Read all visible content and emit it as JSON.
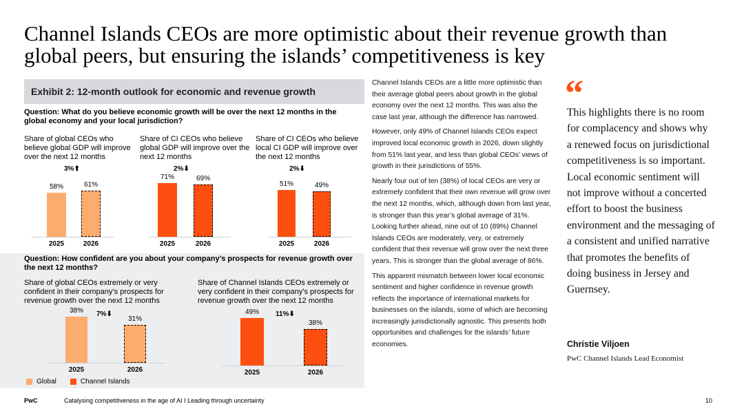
{
  "title": {
    "line1": "Channel Islands CEOs are more optimistic about their revenue growth than",
    "line2": "global peers, but ensuring the islands’ competitiveness is key"
  },
  "exhibit": {
    "title": "Exhibit 2: 12-month outlook for economic and revenue growth"
  },
  "questions": {
    "q1": "Question: What do you believe economic growth will be over the next 12 months in the global economy and your local jurisdiction?",
    "q2": "Question: How confident are you about your company’s prospects for revenue growth over the next 12 months?"
  },
  "colors": {
    "global": "#fdac6f",
    "channel_islands": "#fd5010",
    "accent": "#fd5010"
  },
  "chart_data": [
    {
      "type": "bar",
      "title": "Share of global CEOs who believe global GDP will improve over the next 12 months",
      "categories": [
        "2025",
        "2026"
      ],
      "values": [
        58,
        61
      ],
      "labels": [
        "58%",
        "61%"
      ],
      "series_type": "global",
      "change": "3%",
      "change_direction": "up",
      "ylim": [
        0,
        75
      ]
    },
    {
      "type": "bar",
      "title": "Share of CI CEOs who believe global GDP will improve over the next 12 months",
      "categories": [
        "2025",
        "2026"
      ],
      "values": [
        71,
        69
      ],
      "labels": [
        "71%",
        "69%"
      ],
      "series_type": "ci",
      "change": "2%",
      "change_direction": "down",
      "ylim": [
        0,
        75
      ]
    },
    {
      "type": "bar",
      "title": "Share of CI CEOs who believe local CI GDP will improve over the next 12 months",
      "categories": [
        "2025",
        "2026"
      ],
      "values": [
        51,
        49
      ],
      "labels": [
        "51%",
        "49%"
      ],
      "series_type": "ci",
      "change": "2%",
      "change_direction": "down",
      "ylim": [
        0,
        75
      ]
    },
    {
      "type": "bar",
      "title": "Share of global CEOs extremely or very confident in their company’s prospects for revenue growth over the next 12 months",
      "categories": [
        "2025",
        "2026"
      ],
      "values": [
        38,
        31
      ],
      "labels": [
        "38%",
        "31%"
      ],
      "series_type": "global",
      "change": "7%",
      "change_direction": "down",
      "ylim": [
        0,
        50
      ]
    },
    {
      "type": "bar",
      "title": "Share of Channel Islands CEOs extremely or very confident in their company’s prospects for revenue growth over the next 12 months",
      "categories": [
        "2025",
        "2026"
      ],
      "values": [
        49,
        38
      ],
      "labels": [
        "49%",
        "38%"
      ],
      "series_type": "ci",
      "change": "11%",
      "change_direction": "down",
      "ylim": [
        0,
        50
      ]
    }
  ],
  "legend": {
    "global": "Global",
    "channel_islands": "Channel Islands"
  },
  "body": {
    "p1": "Channel Islands CEOs are a little more optimistic than their average global peers about growth in the global economy over the next 12 months. This was also the case last year, although the difference has narrowed.",
    "p2": "However, only 49% of Channel Islands CEOs expect improved local economic growth in 2026, down slightly from 51% last year, and less than global CEOs’ views of growth in their jurisdictions of 55%.",
    "p3": "Nearly four out of ten (38%) of local CEOs are very or extremely confident that their own revenue will grow over the next 12 months, which, although down from last year, is stronger than this year’s global average of 31%. Looking further ahead, nine out of 10 (89%) Channel Islands CEOs are moderately, very, or extremely confident that their revenue will grow over the next three years. This is stronger than the global average of 86%.",
    "p4": "This apparent mismatch between lower local economic sentiment and higher confidence in revenue growth reflects the importance of international markets for businesses on the islands, some of which are becoming increasingly jurisdictionally agnostic. This presents both opportunities and challenges for the islands’ future economies."
  },
  "quote": {
    "mark": "“",
    "text": "This highlights there is no room for complacency and shows why a renewed focus on jurisdictional competitiveness is so important. Local economic sentiment will not improve without a concerted effort to boost the business environment and the messaging of a consistent and unified narrative that promotes the benefits of doing business in Jersey and Guernsey.",
    "author": "Christie Viljoen",
    "role": "PwC Channel Islands Lead Economist"
  },
  "footer": {
    "brand": "PwC",
    "text": "Catalysing competitiveness in the age of AI I Leading through uncertainty",
    "page": "10"
  }
}
